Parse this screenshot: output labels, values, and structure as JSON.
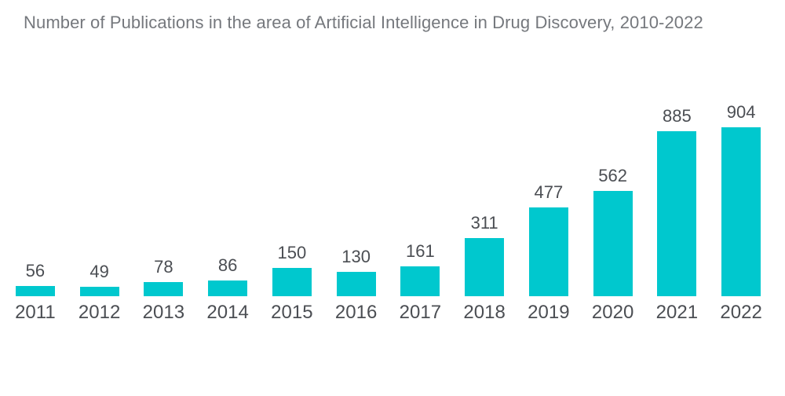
{
  "title": "Number of Publications in the area of Artificial Intelligence in Drug Discovery, 2010-2022",
  "colors": {
    "bar": "#00c8ce",
    "title_text": "#75787d",
    "label_text": "#4b4e53",
    "background": "#ffffff"
  },
  "chart_data": {
    "type": "bar",
    "title": "Number of Publications in the area of Artificial Intelligence in Drug Discovery, 2010-2022",
    "categories": [
      "2011",
      "2012",
      "2013",
      "2014",
      "2015",
      "2016",
      "2017",
      "2018",
      "2019",
      "2020",
      "2021",
      "2022"
    ],
    "values": [
      56,
      49,
      78,
      86,
      150,
      130,
      161,
      311,
      477,
      562,
      885,
      904
    ],
    "xlabel": "",
    "ylabel": "",
    "ylim": [
      0,
      950
    ],
    "grid": false,
    "legend": false,
    "value_labels_position": "above bars",
    "axes_visible": false
  }
}
